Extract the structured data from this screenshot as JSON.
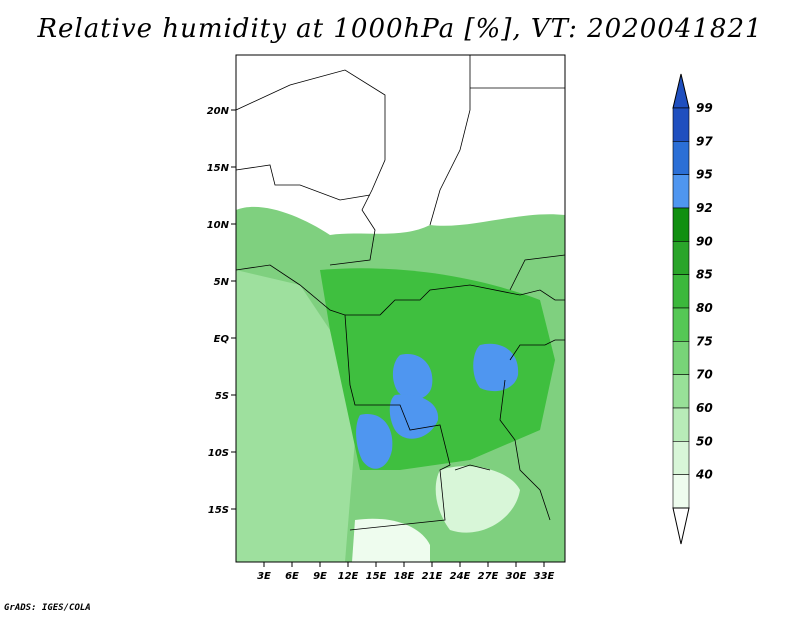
{
  "title": "Relative humidity at 1000hPa [%], VT: 2020041821",
  "credit": "GrADS: IGES/COLA",
  "map": {
    "lat_ticks": [
      "20N",
      "15N",
      "10N",
      "5N",
      "EQ",
      "5S",
      "10S",
      "15S"
    ],
    "lon_ticks": [
      "3E",
      "6E",
      "9E",
      "12E",
      "15E",
      "18E",
      "21E",
      "24E",
      "27E",
      "30E",
      "33E"
    ]
  },
  "colorbar": {
    "labels": [
      "99",
      "97",
      "95",
      "92",
      "90",
      "85",
      "80",
      "75",
      "70",
      "60",
      "50",
      "40"
    ],
    "colors": [
      "#1f4fbf",
      "#2b6fd6",
      "#4f96f0",
      "#108f10",
      "#2aa52a",
      "#3cb83c",
      "#55c855",
      "#78d478",
      "#98e098",
      "#b8ecb8",
      "#d8f6d8",
      "#eefcee"
    ]
  }
}
